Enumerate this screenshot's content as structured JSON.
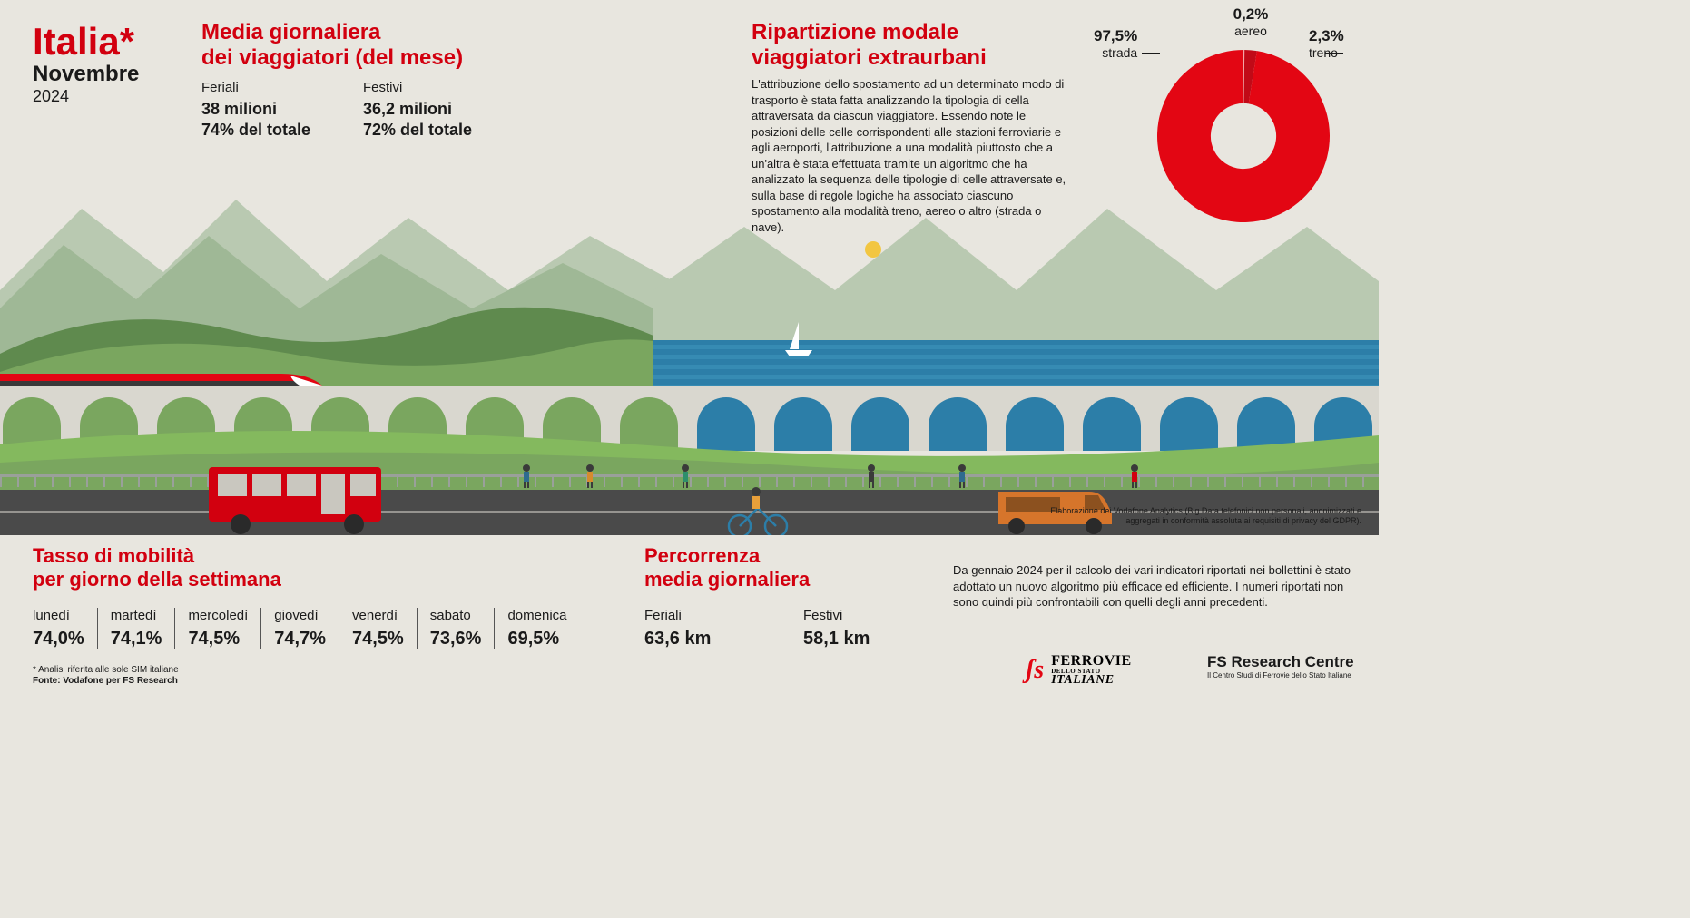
{
  "header": {
    "country": "Italia*",
    "month": "Novembre",
    "year": "2024"
  },
  "daily_avg": {
    "title_l1": "Media giornaliera",
    "title_l2": "dei viaggiatori (del mese)",
    "weekday": {
      "label": "Feriali",
      "value": "38 milioni",
      "pct": "74% del totale"
    },
    "holiday": {
      "label": "Festivi",
      "value": "36,2 milioni",
      "pct": "72% del totale"
    }
  },
  "modal_split": {
    "title_l1": "Ripartizione modale",
    "title_l2": "viaggiatori extraurbani",
    "desc": "L'attribuzione dello spostamento ad un determinato modo di trasporto è stata fatta analizzando la tipologia di cella attraversata da ciascun viaggiatore. Essendo note le posizioni delle celle corrispondenti alle stazioni ferroviarie e agli aeroporti, l'attribuzione a una modalità piuttosto che a un'altra è stata effettuata tramite un algoritmo che ha analizzato la sequenza delle tipologie di celle attraversate e, sulla base di regole logiche ha associato ciascuno spostamento alla modalità treno, aereo o altro (strada o nave).",
    "donut": {
      "type": "donut",
      "inner_radius_pct": 38,
      "background": "#e8e6df",
      "slices": [
        {
          "label": "strada",
          "pct": "97,5%",
          "value": 97.5,
          "color": "#e30613"
        },
        {
          "label": "aereo",
          "pct": "0,2%",
          "value": 0.2,
          "color": "#f4a6a6"
        },
        {
          "label": "treno",
          "pct": "2,3%",
          "value": 2.3,
          "color": "#c10a17"
        }
      ]
    }
  },
  "landscape": {
    "sky": "#e8e6df",
    "sun": "#f2c641",
    "mountains_far": "#b9c9b1",
    "mountains_near": "#9fb896",
    "hills_dark": "#5f8a4e",
    "hills_mid": "#7aa65f",
    "grass": "#84b95e",
    "sea_dark": "#2c7ea8",
    "sea_light": "#4ba3c9",
    "bridge": "#d9d7cf",
    "road": "#4a4a4a",
    "road_line": "#c9c7bf",
    "train_body": "#e30613",
    "train_dark": "#3a3a3a",
    "bus": "#d2000f",
    "van": "#d6752b",
    "bike": "#2c7ea8",
    "sailboat": "#ffffff"
  },
  "mobility_rate": {
    "title_l1": "Tasso di mobilità",
    "title_l2": "per giorno della settimana",
    "days": [
      {
        "day": "lunedì",
        "pct": "74,0%"
      },
      {
        "day": "martedì",
        "pct": "74,1%"
      },
      {
        "day": "mercoledì",
        "pct": "74,5%"
      },
      {
        "day": "giovedì",
        "pct": "74,7%"
      },
      {
        "day": "venerdì",
        "pct": "74,5%"
      },
      {
        "day": "sabato",
        "pct": "73,6%"
      },
      {
        "day": "domenica",
        "pct": "69,5%"
      }
    ],
    "footnote1": "* Analisi riferita alle sole SIM italiane",
    "footnote2": "Fonte: Vodafone per FS Research"
  },
  "avg_distance": {
    "title_l1": "Percorrenza",
    "title_l2": "media giornaliera",
    "weekday": {
      "label": "Feriali",
      "value": "63,6  km"
    },
    "holiday": {
      "label": "Festivi",
      "value": "58,1 km"
    }
  },
  "source_note": "Elaborazione dei Vodafone Analytics (Big Data telefonici non personali, anonimizzati e aggregati in conformità assoluta ai requisiti di privacy del GDPR).",
  "algo_note": "Da gennaio 2024 per il calcolo dei vari indicatori riportati nei bollettini è stato adottato un nuovo algoritmo più efficace ed efficiente. I numeri riportati non sono quindi più confrontabili con quelli degli anni precedenti.",
  "logos": {
    "fs_main": "FERROVIE",
    "fs_sub1": "DELLO STATO",
    "fs_sub2": "ITALIANE",
    "research": "FS Research Centre",
    "research_sub": "Il Centro Studi di Ferrovie dello Stato Italiane"
  }
}
